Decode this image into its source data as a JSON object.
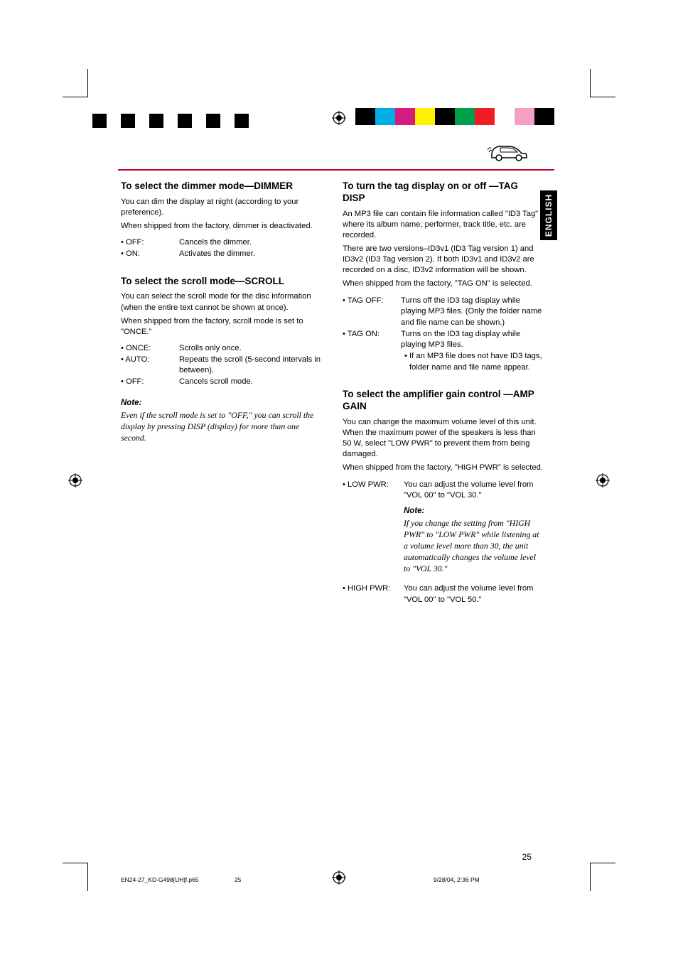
{
  "colorBarLeft": [
    "#000000",
    "#ffffff",
    "#000000",
    "#ffffff",
    "#000000",
    "#ffffff",
    "#000000",
    "#ffffff",
    "#000000",
    "#ffffff",
    "#000000"
  ],
  "colorBarRight": [
    "#000000",
    "#00aee6",
    "#d61a7f",
    "#fff100",
    "#000000",
    "#00a04b",
    "#ee1c25",
    "#ffffff",
    "#f59fc5",
    "#000000"
  ],
  "sideTab": "ENGLISH",
  "pageNum": "25",
  "footer": {
    "file": "EN24-27_KD-G498[UH]f.p65",
    "page": "25",
    "date": "9/28/04, 2:36 PM"
  },
  "left": {
    "dimmer": {
      "heading": "To select the dimmer mode—DIMMER",
      "body1": "You can dim the display at night (according to your preference).",
      "body2": "When shipped from the factory, dimmer is deactivated.",
      "items": [
        {
          "k": "• OFF:",
          "d": "Cancels the dimmer."
        },
        {
          "k": "• ON:",
          "d": "Activates the dimmer."
        }
      ]
    },
    "scroll": {
      "heading": "To select the scroll mode—SCROLL",
      "body1": "You can select the scroll mode for the disc information (when the entire text cannot be shown at once).",
      "body2": "When shipped from the factory, scroll mode is set to \"ONCE.\"",
      "items": [
        {
          "k": "• ONCE:",
          "d": "Scrolls only once."
        },
        {
          "k": "• AUTO:",
          "d": "Repeats the scroll (5-second intervals in between)."
        },
        {
          "k": "• OFF:",
          "d": "Cancels scroll mode."
        }
      ],
      "noteLabel": "Note:",
      "note": "Even if the scroll mode is set to \"OFF,\" you can scroll the display by pressing DISP (display) for more than one second."
    }
  },
  "right": {
    "tag": {
      "heading": "To turn the tag display on or off —TAG DISP",
      "body1": "An MP3 file can contain file information called \"ID3 Tag\" where its album name, performer, track title, etc. are recorded.",
      "body2": "There are two versions–ID3v1 (ID3 Tag version 1) and ID3v2 (ID3 Tag version 2). If both ID3v1 and ID3v2 are recorded on a disc, ID3v2 information will be shown.",
      "body3": "When shipped from the factory, \"TAG ON\" is selected.",
      "items": [
        {
          "k": "• TAG OFF:",
          "d": "Turns off the ID3 tag display while playing MP3 files. (Only the folder name and file name can be shown.)"
        },
        {
          "k": "• TAG ON:",
          "d": "Turns on the ID3 tag display while playing MP3 files."
        }
      ],
      "sub": "• If an MP3 file does not have ID3 tags, folder name and file name appear."
    },
    "amp": {
      "heading": "To select the amplifier gain control —AMP GAIN",
      "body1": "You can change the maximum volume level of this unit. When the maximum power of the speakers is less than 50 W, select \"LOW PWR\" to prevent them from being damaged.",
      "body2": "When shipped from the factory, \"HIGH PWR\" is selected.",
      "low": {
        "k": "• LOW PWR:",
        "d": "You can adjust the volume level from \"VOL 00\" to \"VOL 30.\""
      },
      "noteLabel": "Note:",
      "note": "If you change the setting from \"HIGH PWR\" to \"LOW PWR\" while listening at a volume level more than 30, the unit automatically changes the volume level to \"VOL 30.\"",
      "high": {
        "k": "• HIGH PWR:",
        "d": "You can adjust the volume level from \"VOL 00\" to \"VOL 50.\""
      }
    }
  }
}
